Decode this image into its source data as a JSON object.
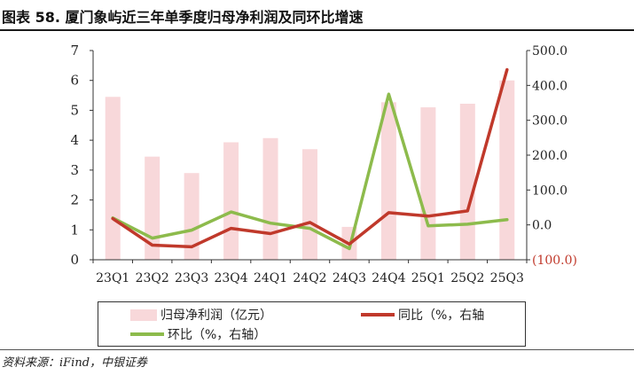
{
  "title": "图表 58. 厦门象屿近三年单季度归母净利润及同环比增速",
  "source": "资料来源：iFind，中银证券",
  "colors": {
    "bar": "#f8d8da",
    "yoy": "#c0392b",
    "qoq": "#8dbb4c",
    "axis": "#333333",
    "neg_label": "#c0392b"
  },
  "chart_data": {
    "type": "bar",
    "categories": [
      "23Q1",
      "23Q2",
      "23Q3",
      "23Q4",
      "24Q1",
      "24Q2",
      "24Q3",
      "24Q4",
      "25Q1",
      "25Q2",
      "25Q3"
    ],
    "series": [
      {
        "name": "归母净利润（亿元）",
        "type": "bar",
        "axis": "left",
        "values": [
          5.45,
          3.45,
          2.9,
          3.93,
          4.07,
          3.7,
          1.1,
          5.27,
          5.1,
          5.22,
          6.0
        ]
      },
      {
        "name": "同比（%，右轴",
        "type": "line",
        "axis": "right",
        "values": [
          18,
          -58,
          -63,
          -10,
          -25,
          7,
          -55,
          35,
          25,
          40,
          445
        ]
      },
      {
        "name": "环比（%，右轴）",
        "type": "line",
        "axis": "right",
        "values": [
          20,
          -38,
          -15,
          37,
          5,
          -10,
          -68,
          375,
          -3,
          2,
          15
        ]
      }
    ],
    "left_axis": {
      "ylim": [
        0,
        7
      ],
      "ticks": [
        "0",
        "1",
        "2",
        "3",
        "4",
        "5",
        "6",
        "7"
      ]
    },
    "right_axis": {
      "ylim": [
        -100,
        500
      ],
      "ticks": [
        "(100.0)",
        "0.0",
        "100.0",
        "200.0",
        "300.0",
        "400.0",
        "500.0"
      ]
    },
    "legend_position": "bottom",
    "grid": false
  }
}
